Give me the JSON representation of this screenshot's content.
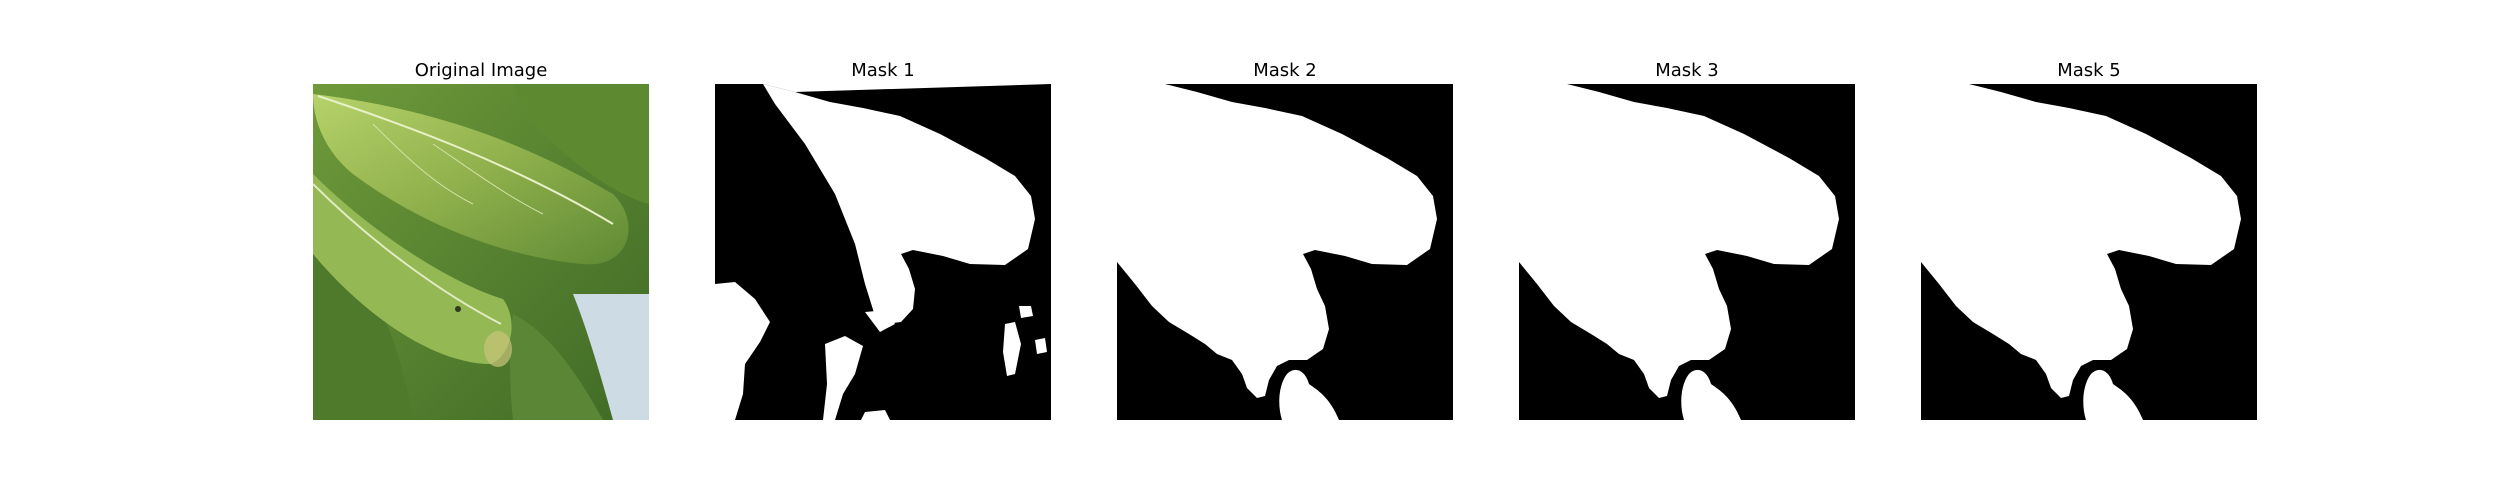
{
  "figure": {
    "panels": [
      {
        "title": "Original Image",
        "kind": "photo",
        "subject": "green leaves (bok choy)"
      },
      {
        "title": "Mask 1",
        "kind": "binary-mask"
      },
      {
        "title": "Mask 2",
        "kind": "binary-mask"
      },
      {
        "title": "Mask 3",
        "kind": "binary-mask"
      },
      {
        "title": "Mask 5",
        "kind": "binary-mask"
      }
    ]
  },
  "colors": {
    "mask_foreground": "#ffffff",
    "mask_background": "#000000",
    "leaf_light": "#a9c85c",
    "leaf_mid": "#7ea343",
    "leaf_dark": "#4f7a2c",
    "sky": "#cddbe4"
  }
}
